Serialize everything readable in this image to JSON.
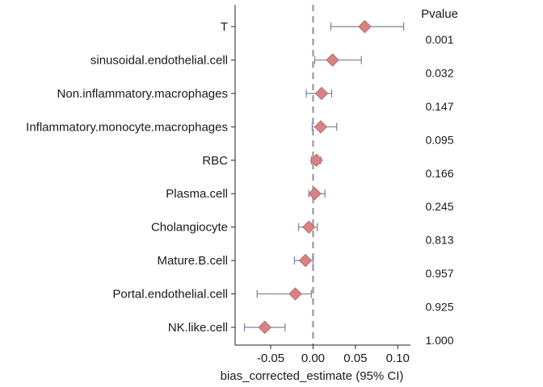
{
  "chart_data": {
    "type": "scatter",
    "subtype": "forest-plot",
    "xlabel": "bias_corrected_estimate (95% CI)",
    "xlim": [
      -0.092,
      0.115
    ],
    "xticks": [
      -0.05,
      0.0,
      0.05,
      0.1
    ],
    "xtick_labels": [
      "-0.05",
      "0.00",
      "0.05",
      "0.10"
    ],
    "reference_line": 0.0,
    "pvalue_header": "Pvalue",
    "rows": [
      {
        "label": "T",
        "estimate": 0.061,
        "lower": 0.021,
        "upper": 0.107,
        "pvalue": "0.001"
      },
      {
        "label": "sinusoidal.endothelial.cell",
        "estimate": 0.023,
        "lower": 0.002,
        "upper": 0.057,
        "pvalue": "0.032"
      },
      {
        "label": "Non.inflammatory.macrophages",
        "estimate": 0.01,
        "lower": -0.008,
        "upper": 0.022,
        "pvalue": "0.147"
      },
      {
        "label": "Inflammatory.monocyte.macrophages",
        "estimate": 0.009,
        "lower": -0.001,
        "upper": 0.028,
        "pvalue": "0.095"
      },
      {
        "label": "RBC",
        "estimate": 0.004,
        "lower": -0.002,
        "upper": 0.009,
        "pvalue": "0.166"
      },
      {
        "label": "Plasma.cell",
        "estimate": 0.002,
        "lower": -0.005,
        "upper": 0.014,
        "pvalue": "0.245"
      },
      {
        "label": "Cholangiocyte",
        "estimate": -0.005,
        "lower": -0.017,
        "upper": 0.005,
        "pvalue": "0.813"
      },
      {
        "label": "Mature.B.cell",
        "estimate": -0.009,
        "lower": -0.022,
        "upper": 0.0,
        "pvalue": "0.957"
      },
      {
        "label": "Portal.endothelial.cell",
        "estimate": -0.021,
        "lower": -0.066,
        "upper": -0.002,
        "pvalue": "0.925"
      },
      {
        "label": "NK.like.cell",
        "estimate": -0.057,
        "lower": -0.081,
        "upper": -0.033,
        "pvalue": "1.000"
      }
    ],
    "colors": {
      "marker": "#d98283",
      "marker_stroke": "#b86a6b",
      "errorbar": "#7a8498",
      "reference_line": "#9a9a9a",
      "axis": "#222222"
    }
  }
}
